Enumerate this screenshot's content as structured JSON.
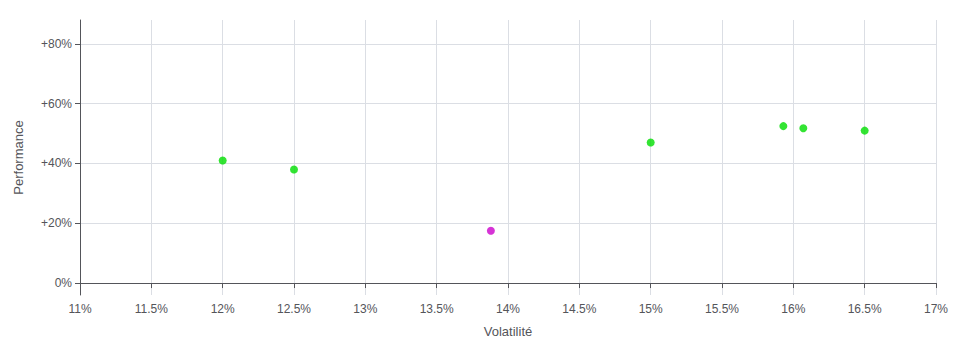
{
  "chart_data": {
    "type": "scatter",
    "xlabel": "Volatilité",
    "ylabel": "Performance",
    "x": [
      12.0,
      12.5,
      13.88,
      15.0,
      15.93,
      16.07,
      16.5
    ],
    "values": [
      41.0,
      38.0,
      17.5,
      47.0,
      52.5,
      51.8,
      51.0
    ],
    "colors": [
      "#00dd00",
      "#00dd00",
      "#cc00cc",
      "#00dd00",
      "#00dd00",
      "#00dd00",
      "#00dd00"
    ],
    "xlim": [
      11.0,
      17.0
    ],
    "ylim": [
      -4.0,
      88.0
    ],
    "xticks": [
      {
        "value": 11.0,
        "label": "11%"
      },
      {
        "value": 11.5,
        "label": "11.5%"
      },
      {
        "value": 12.0,
        "label": "12%"
      },
      {
        "value": 12.5,
        "label": "12.5%"
      },
      {
        "value": 13.0,
        "label": "13%"
      },
      {
        "value": 13.5,
        "label": "13.5%"
      },
      {
        "value": 14.0,
        "label": "14%"
      },
      {
        "value": 14.5,
        "label": "14.5%"
      },
      {
        "value": 15.0,
        "label": "15%"
      },
      {
        "value": 15.5,
        "label": "15.5%"
      },
      {
        "value": 16.0,
        "label": "16%"
      },
      {
        "value": 16.5,
        "label": "16.5%"
      },
      {
        "value": 17.0,
        "label": "17%"
      }
    ],
    "yticks": [
      {
        "value": 0,
        "label": "0%"
      },
      {
        "value": 20,
        "label": "+20%"
      },
      {
        "value": 40,
        "label": "+40%"
      },
      {
        "value": 60,
        "label": "+60%"
      },
      {
        "value": 80,
        "label": "+80%"
      }
    ],
    "grid": true
  }
}
